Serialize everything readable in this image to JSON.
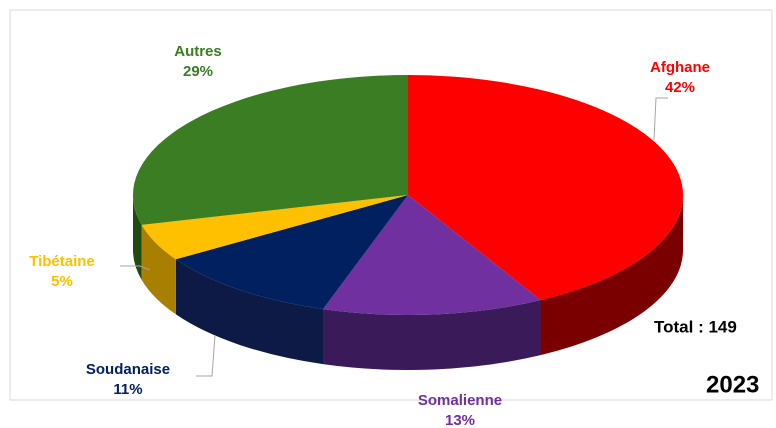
{
  "chart_data": {
    "type": "pie",
    "categories": [
      "Afghane",
      "Somalienne",
      "Soudanaise",
      "Tibétaine",
      "Autres"
    ],
    "values": [
      42,
      13,
      11,
      5,
      29
    ],
    "value_labels": [
      "42%",
      "13%",
      "11%",
      "5%",
      "29%"
    ],
    "colors": [
      "#ff0000",
      "#7030a0",
      "#002060",
      "#ffc000",
      "#3a7d22"
    ],
    "side_colors": [
      "#7a0000",
      "#3b1a5a",
      "#0d1a45",
      "#a87f00",
      "#1f4a12"
    ],
    "annotations": [
      "Total : 149",
      "2023"
    ]
  }
}
